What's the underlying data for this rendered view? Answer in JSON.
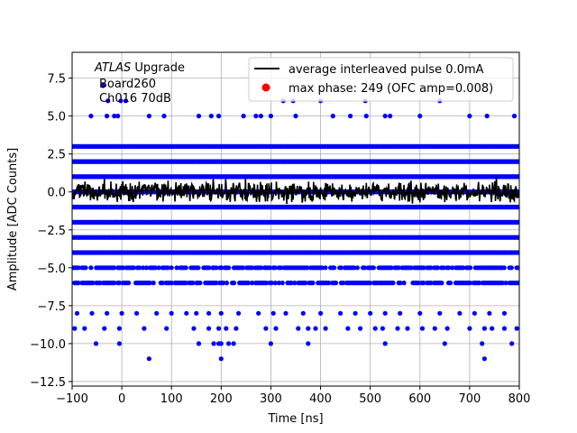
{
  "chart_data": {
    "type": "scatter",
    "title": "",
    "xlabel": "Time [ns]",
    "ylabel": "Amplitude [ADC Counts]",
    "xlim": [
      -100,
      800
    ],
    "ylim": [
      -12.8,
      9.2
    ],
    "x_ticks": [
      -100,
      0,
      100,
      200,
      300,
      400,
      500,
      600,
      700,
      800
    ],
    "y_ticks": [
      -12.5,
      -10.0,
      -7.5,
      -5.0,
      -2.5,
      0.0,
      2.5,
      5.0,
      7.5
    ],
    "x_tick_labels": [
      "−100",
      "0",
      "100",
      "200",
      "300",
      "400",
      "500",
      "600",
      "700",
      "800"
    ],
    "y_tick_labels": [
      "−12.5",
      "−10.0",
      "−7.5",
      "−5.0",
      "−2.5",
      "0.0",
      "2.5",
      "5.0",
      "7.5"
    ],
    "grid": true,
    "legend_position": "top-right",
    "annotation": {
      "line1_italic": "ATLAS",
      "line1_rest": " Upgrade",
      "line2": "Board260",
      "line3": "Ch016 70dB"
    },
    "series": [
      {
        "name": "average interleaved pulse 0.0mA",
        "kind": "line",
        "color": "#000000",
        "x_range": [
          -100,
          800
        ],
        "y_level": 0.0
      },
      {
        "name": "max phase: 249 (OFC amp=0.008)",
        "kind": "scatter",
        "color": "#0000ff",
        "dense_levels": [
          3,
          2,
          1,
          0,
          -1,
          -2,
          -3,
          -4,
          -5,
          -6
        ],
        "sparse_points": [
          [
            -38,
            7
          ],
          [
            -28,
            6
          ],
          [
            -2,
            6
          ],
          [
            8,
            6
          ],
          [
            -62,
            5
          ],
          [
            -30,
            5
          ],
          [
            -15,
            5
          ],
          [
            -8,
            5
          ],
          [
            55,
            5
          ],
          [
            85,
            5
          ],
          [
            155,
            5
          ],
          [
            180,
            5
          ],
          [
            195,
            5
          ],
          [
            245,
            5
          ],
          [
            270,
            5
          ],
          [
            280,
            5
          ],
          [
            300,
            5
          ],
          [
            325,
            6
          ],
          [
            345,
            6
          ],
          [
            350,
            5
          ],
          [
            400,
            6
          ],
          [
            425,
            5
          ],
          [
            460,
            5
          ],
          [
            490,
            6
          ],
          [
            492,
            5
          ],
          [
            530,
            5
          ],
          [
            540,
            5
          ],
          [
            600,
            5
          ],
          [
            640,
            6
          ],
          [
            700,
            5
          ],
          [
            735,
            5
          ],
          [
            790,
            5
          ],
          [
            -90,
            -8
          ],
          [
            -60,
            -8
          ],
          [
            -30,
            -8
          ],
          [
            0,
            -8
          ],
          [
            30,
            -8
          ],
          [
            70,
            -8
          ],
          [
            100,
            -8
          ],
          [
            130,
            -8
          ],
          [
            150,
            -8
          ],
          [
            175,
            -8
          ],
          [
            200,
            -8
          ],
          [
            235,
            -8
          ],
          [
            275,
            -8
          ],
          [
            305,
            -8
          ],
          [
            330,
            -8
          ],
          [
            365,
            -8
          ],
          [
            400,
            -8
          ],
          [
            440,
            -8
          ],
          [
            470,
            -8
          ],
          [
            500,
            -8
          ],
          [
            530,
            -8
          ],
          [
            560,
            -8
          ],
          [
            600,
            -8
          ],
          [
            640,
            -8
          ],
          [
            680,
            -8
          ],
          [
            710,
            -8
          ],
          [
            740,
            -8
          ],
          [
            770,
            -8
          ],
          [
            -95,
            -9
          ],
          [
            -75,
            -9
          ],
          [
            -35,
            -9
          ],
          [
            -5,
            -9
          ],
          [
            45,
            -9
          ],
          [
            90,
            -9
          ],
          [
            145,
            -9
          ],
          [
            175,
            -9
          ],
          [
            195,
            -9
          ],
          [
            210,
            -9
          ],
          [
            230,
            -9
          ],
          [
            290,
            -9
          ],
          [
            310,
            -9
          ],
          [
            355,
            -9
          ],
          [
            375,
            -9
          ],
          [
            390,
            -9
          ],
          [
            410,
            -9
          ],
          [
            455,
            -9
          ],
          [
            480,
            -9
          ],
          [
            510,
            -9
          ],
          [
            525,
            -9
          ],
          [
            555,
            -9
          ],
          [
            575,
            -9
          ],
          [
            605,
            -9
          ],
          [
            630,
            -9
          ],
          [
            655,
            -9
          ],
          [
            700,
            -9
          ],
          [
            730,
            -9
          ],
          [
            745,
            -9
          ],
          [
            770,
            -9
          ],
          [
            795,
            -9
          ],
          [
            -52,
            -10
          ],
          [
            -5,
            -10
          ],
          [
            155,
            -10
          ],
          [
            185,
            -10
          ],
          [
            195,
            -10
          ],
          [
            200,
            -10
          ],
          [
            215,
            -10
          ],
          [
            225,
            -10
          ],
          [
            300,
            -10
          ],
          [
            375,
            -10
          ],
          [
            530,
            -10
          ],
          [
            650,
            -10
          ],
          [
            725,
            -10
          ],
          [
            785,
            -10
          ],
          [
            55,
            -11
          ],
          [
            200,
            -11
          ],
          [
            730,
            -11
          ]
        ]
      }
    ]
  }
}
